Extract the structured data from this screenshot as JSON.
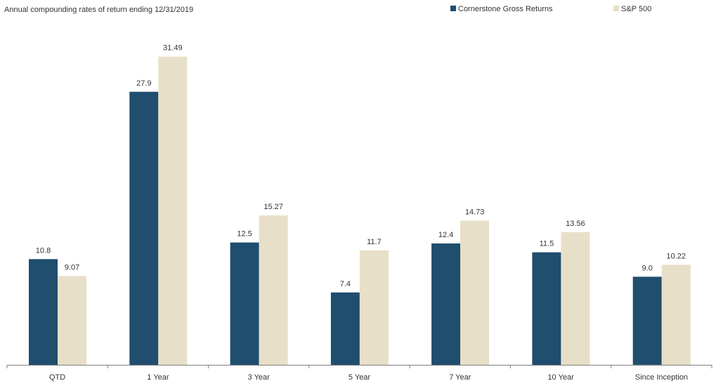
{
  "chart_data": {
    "type": "bar",
    "title": "Annual compounding rates of return ending 12/31/2019",
    "categories": [
      "QTD",
      "1 Year",
      "3 Year",
      "5 Year",
      "7 Year",
      "10 Year",
      "Since Inception"
    ],
    "series": [
      {
        "name": "Cornerstone Gross Returns",
        "color": "#1f4e6e",
        "values": [
          10.8,
          27.9,
          12.5,
          7.4,
          12.4,
          11.5,
          9.0
        ],
        "labels": [
          "10.8",
          "27.9",
          "12.5",
          "7.4",
          "12.4",
          "11.5",
          "9.0"
        ]
      },
      {
        "name": "S&P 500",
        "color": "#e8dfc8",
        "values": [
          9.07,
          31.49,
          15.27,
          11.7,
          14.73,
          13.56,
          10.22
        ],
        "labels": [
          "9.07",
          "31.49",
          "15.27",
          "11.7",
          "14.73",
          "13.56",
          "10.22"
        ]
      }
    ],
    "xlabel": "",
    "ylabel": "",
    "ylim": [
      0,
      35
    ],
    "grid": false,
    "legend_position": "top-right"
  }
}
